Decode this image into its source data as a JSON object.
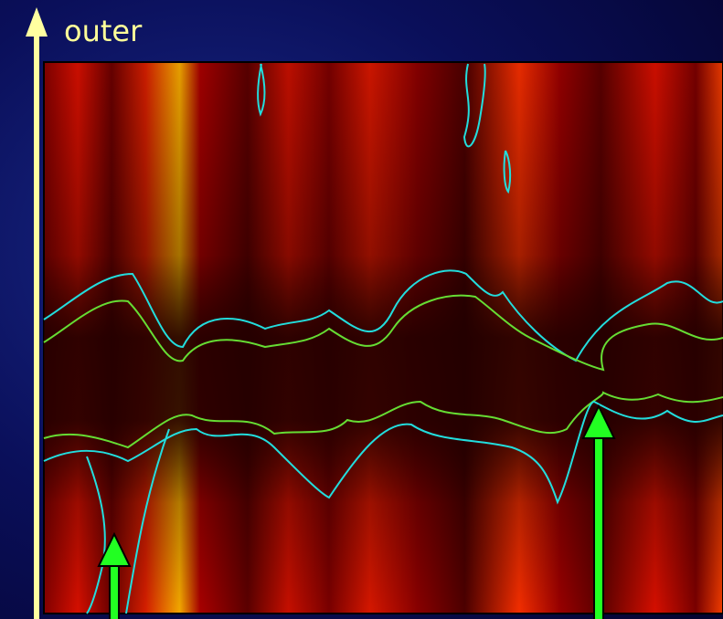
{
  "label": "outer"
}
